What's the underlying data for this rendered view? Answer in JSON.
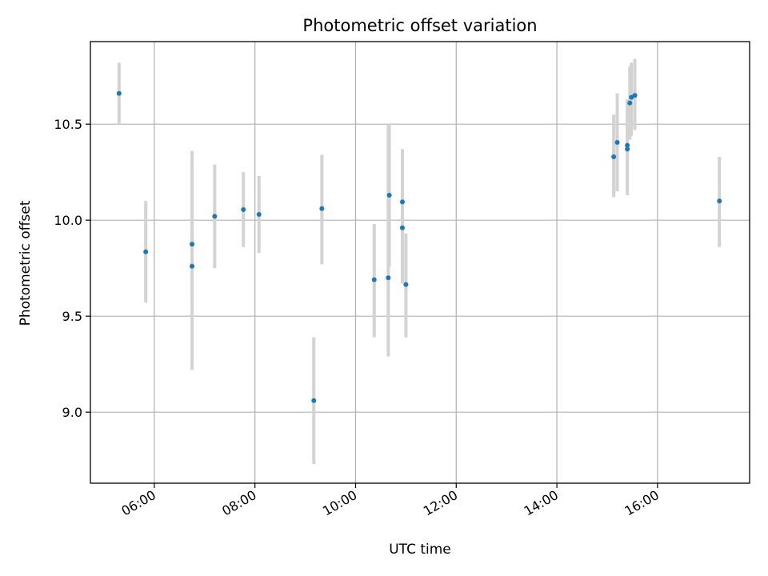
{
  "chart_data": {
    "type": "scatter",
    "title": "Photometric offset variation",
    "xlabel": "UTC time",
    "ylabel": "Photometric offset",
    "x_ticks": [
      "06:00",
      "08:00",
      "10:00",
      "12:00",
      "14:00",
      "16:00"
    ],
    "x_tick_values_hours": [
      6,
      8,
      10,
      12,
      14,
      16
    ],
    "y_ticks": [
      "9.0",
      "9.5",
      "10.0",
      "10.5"
    ],
    "y_tick_values": [
      9.0,
      9.5,
      10.0,
      10.5
    ],
    "xlim_hours": [
      4.73,
      17.83
    ],
    "ylim": [
      8.63,
      10.93
    ],
    "grid": true,
    "colors": {
      "points": "#1f77b4",
      "errorbars": "#d3d3d3",
      "grid": "#b0b0b0",
      "axes": "#000000"
    },
    "series": [
      {
        "x_time": [
          "05:18",
          "05:50",
          "06:45",
          "06:45",
          "07:12",
          "07:46",
          "08:05",
          "09:10",
          "09:20",
          "10:22",
          "10:39",
          "10:40",
          "10:56",
          "10:56",
          "11:00",
          "15:08",
          "15:12",
          "15:24",
          "15:24",
          "15:27",
          "15:29",
          "15:33",
          "17:14"
        ],
        "x_hours": [
          5.3,
          5.83,
          6.75,
          6.75,
          7.2,
          7.77,
          8.08,
          9.17,
          9.33,
          10.37,
          10.65,
          10.67,
          10.93,
          10.93,
          11.0,
          15.13,
          15.2,
          15.4,
          15.4,
          15.45,
          15.48,
          15.55,
          17.23
        ],
        "y": [
          10.66,
          9.835,
          9.875,
          9.76,
          10.02,
          10.055,
          10.03,
          9.06,
          10.06,
          9.69,
          9.7,
          10.13,
          10.095,
          9.96,
          9.665,
          10.33,
          10.405,
          10.37,
          10.39,
          10.61,
          10.64,
          10.65,
          10.1
        ],
        "err_low": [
          10.5,
          9.57,
          9.58,
          9.22,
          9.75,
          9.86,
          9.83,
          8.73,
          9.77,
          9.39,
          9.29,
          9.76,
          9.82,
          9.67,
          9.39,
          10.12,
          10.15,
          10.13,
          10.16,
          10.42,
          10.44,
          10.47,
          9.86
        ],
        "err_high": [
          10.82,
          10.1,
          10.36,
          10.3,
          10.29,
          10.25,
          10.23,
          9.39,
          10.34,
          9.98,
          10.5,
          10.5,
          10.37,
          10.25,
          9.93,
          10.55,
          10.66,
          10.63,
          10.63,
          10.8,
          10.82,
          10.84,
          10.33
        ]
      }
    ]
  }
}
